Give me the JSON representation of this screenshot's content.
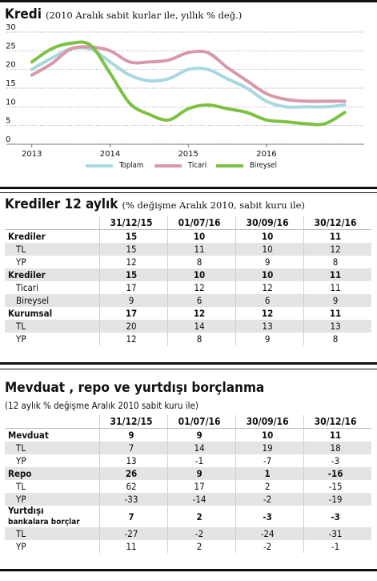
{
  "section1": {
    "title": "Kredi",
    "subtitle": "(2010 Aralık sabit kurlar ile, yıllık % değ.)"
  },
  "chart_data": {
    "type": "line",
    "x_ticks": [
      "2013",
      "2014",
      "2015",
      "2016"
    ],
    "y_ticks": [
      "0",
      "5",
      "10",
      "15",
      "20",
      "25",
      "30"
    ],
    "ylim": [
      0,
      30
    ],
    "x_labels_at": [
      2013.0,
      2014.0,
      2015.0,
      2016.0
    ],
    "xlim": [
      2012.9,
      2017.25
    ],
    "x": [
      2013.0,
      2013.25,
      2013.5,
      2013.75,
      2014.0,
      2014.25,
      2014.5,
      2014.75,
      2015.0,
      2015.25,
      2015.5,
      2015.75,
      2016.0,
      2016.25,
      2016.5,
      2016.75,
      2017.0
    ],
    "series": [
      {
        "name": "Toplam",
        "color": "#a8d8e0",
        "values": [
          20.0,
          23.0,
          25.5,
          25.5,
          22.0,
          18.5,
          17.0,
          17.5,
          20.0,
          20.0,
          17.5,
          15.0,
          11.5,
          10.0,
          10.0,
          10.0,
          10.5
        ]
      },
      {
        "name": "Ticari",
        "color": "#d899ac",
        "values": [
          18.5,
          21.5,
          25.5,
          26.0,
          25.0,
          22.0,
          22.0,
          22.5,
          24.5,
          24.5,
          20.5,
          17.0,
          13.5,
          12.0,
          11.5,
          11.5,
          11.5
        ]
      },
      {
        "name": "Bireysel",
        "color": "#7dc143",
        "values": [
          22.0,
          25.5,
          27.0,
          26.5,
          19.0,
          11.0,
          8.0,
          6.5,
          9.5,
          10.5,
          9.5,
          8.5,
          6.5,
          6.0,
          5.5,
          5.5,
          8.5
        ]
      }
    ]
  },
  "section2": {
    "title": "Krediler 12 aylık",
    "subtitle": "(% değişme Aralık 2010, sabit kuru ile)",
    "headers": [
      "",
      "31/12/15",
      "01/07/16",
      "30/09/16",
      "30/12/16"
    ],
    "rows": [
      {
        "label": "Krediler",
        "values": [
          "15",
          "10",
          "10",
          "11"
        ],
        "bold": true,
        "shade": false
      },
      {
        "label": "TL",
        "values": [
          "15",
          "11",
          "10",
          "12"
        ],
        "bold": false,
        "shade": true
      },
      {
        "label": "YP",
        "values": [
          "12",
          "8",
          "9",
          "8"
        ],
        "bold": false,
        "shade": false
      },
      {
        "label": "Krediler",
        "values": [
          "15",
          "10",
          "10",
          "11"
        ],
        "bold": true,
        "shade": true
      },
      {
        "label": "Ticari",
        "values": [
          "17",
          "12",
          "12",
          "11"
        ],
        "bold": false,
        "shade": false
      },
      {
        "label": "Bireysel",
        "values": [
          "9",
          "6",
          "6",
          "9"
        ],
        "bold": false,
        "shade": true
      },
      {
        "label": "Kurumsal",
        "values": [
          "17",
          "12",
          "12",
          "11"
        ],
        "bold": true,
        "shade": false
      },
      {
        "label": "TL",
        "values": [
          "20",
          "14",
          "13",
          "13"
        ],
        "bold": false,
        "shade": true
      },
      {
        "label": "YP",
        "values": [
          "12",
          "8",
          "9",
          "8"
        ],
        "bold": false,
        "shade": false
      }
    ]
  },
  "section3": {
    "title": "Mevduat , repo ve yurtdışı borçlanma",
    "subtitle": "(12 aylık % değişme Aralık 2010 sabit kuru ile)",
    "headers": [
      "",
      "31/12/15",
      "01/07/16",
      "30/09/16",
      "30/12/16"
    ],
    "rows": [
      {
        "label": "Mevduat",
        "values": [
          "9",
          "9",
          "10",
          "11"
        ],
        "bold": true,
        "shade": false
      },
      {
        "label": "TL",
        "values": [
          "7",
          "14",
          "19",
          "18"
        ],
        "bold": false,
        "shade": true
      },
      {
        "label": "YP",
        "values": [
          "13",
          "-1",
          "-7",
          "-3"
        ],
        "bold": false,
        "shade": false
      },
      {
        "label": "Repo",
        "values": [
          "26",
          "9",
          "1",
          "-16"
        ],
        "bold": true,
        "shade": true
      },
      {
        "label": "TL",
        "values": [
          "62",
          "17",
          "2",
          "-15"
        ],
        "bold": false,
        "shade": false
      },
      {
        "label": "YP",
        "values": [
          "-33",
          "-14",
          "-2",
          "-19"
        ],
        "bold": false,
        "shade": true
      },
      {
        "label": "Yurtdışı",
        "label2": "bankalara borçlar",
        "values": [
          "7",
          "2",
          "-3",
          "-3"
        ],
        "bold": true,
        "shade": false
      },
      {
        "label": "TL",
        "values": [
          "-27",
          "-2",
          "-24",
          "-31"
        ],
        "bold": false,
        "shade": true
      },
      {
        "label": "YP",
        "values": [
          "11",
          "2",
          "-2",
          "-1"
        ],
        "bold": false,
        "shade": false
      }
    ]
  }
}
